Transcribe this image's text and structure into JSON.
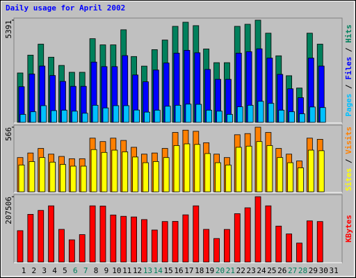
{
  "chart_data": [
    {
      "type": "bar",
      "title": "Daily usage for April 2002",
      "legend_separator": " / ",
      "ylim": [
        0,
        5391
      ],
      "yticks": [
        5391
      ],
      "series": [
        {
          "name": "Hits",
          "color": "#00805c",
          "values": [
            2605,
            3546,
            4125,
            3437,
            3003,
            2641,
            2641,
            4414,
            4088,
            4088,
            4884,
            3473,
            2967,
            3835,
            4342,
            5065,
            5282,
            5102,
            3871,
            3148,
            3148,
            5065,
            5174,
            5391,
            4704,
            3510,
            2460,
            1809,
            4704,
            4125,
            null
          ]
        },
        {
          "name": "Files",
          "color": "#0000ff",
          "values": [
            1880,
            2550,
            2970,
            2470,
            2160,
            1900,
            1900,
            3180,
            2940,
            2940,
            3520,
            2500,
            2140,
            2760,
            3130,
            3650,
            3800,
            3670,
            2790,
            2270,
            2270,
            3650,
            3730,
            3880,
            3390,
            2530,
            1770,
            1300,
            3390,
            2970,
            null
          ]
        },
        {
          "name": "Pages",
          "color": "#00c0ff",
          "values": [
            420,
            560,
            880,
            620,
            640,
            590,
            480,
            900,
            760,
            880,
            880,
            650,
            540,
            640,
            850,
            900,
            960,
            950,
            640,
            590,
            420,
            820,
            900,
            1110,
            1000,
            640,
            560,
            450,
            810,
            780,
            null
          ]
        }
      ]
    },
    {
      "type": "bar",
      "legend_separator": " / ",
      "ylim": [
        0,
        566
      ],
      "yticks": [
        566
      ],
      "series": [
        {
          "name": "Visits",
          "color": "#ff8000",
          "values": [
            300,
            340,
            380,
            330,
            310,
            290,
            290,
            470,
            440,
            470,
            450,
            390,
            330,
            340,
            380,
            520,
            540,
            530,
            430,
            330,
            300,
            500,
            510,
            566,
            520,
            380,
            330,
            270,
            470,
            460,
            null
          ]
        },
        {
          "name": "Sites",
          "color": "#ffff00",
          "values": [
            235,
            265,
            300,
            260,
            240,
            225,
            225,
            370,
            345,
            365,
            350,
            305,
            255,
            265,
            300,
            405,
            420,
            415,
            335,
            255,
            235,
            390,
            400,
            440,
            405,
            300,
            255,
            210,
            365,
            360,
            null
          ]
        }
      ]
    },
    {
      "type": "bar",
      "ylim": [
        0,
        207506
      ],
      "yticks": [
        207506
      ],
      "categories": [
        "1",
        "2",
        "3",
        "4",
        "5",
        "6",
        "7",
        "8",
        "9",
        "10",
        "11",
        "12",
        "13",
        "14",
        "15",
        "16",
        "17",
        "18",
        "19",
        "20",
        "21",
        "22",
        "23",
        "24",
        "25",
        "26",
        "27",
        "28",
        "29",
        "30",
        "31"
      ],
      "category_colors": [
        "#000000",
        "#000000",
        "#000000",
        "#000000",
        "#000000",
        "#00805c",
        "#00805c",
        "#000000",
        "#000000",
        "#000000",
        "#000000",
        "#000000",
        "#00805c",
        "#00805c",
        "#000000",
        "#000000",
        "#000000",
        "#000000",
        "#000000",
        "#00805c",
        "#00805c",
        "#000000",
        "#000000",
        "#000000",
        "#000000",
        "#000000",
        "#00805c",
        "#00805c",
        "#000000",
        "#000000",
        "#000000"
      ],
      "series": [
        {
          "name": "KBytes",
          "color": "#ff0000",
          "values": [
            99603,
            151479,
            163930,
            178455,
            103753,
            70552,
            87153,
            178455,
            177800,
            149404,
            145254,
            143179,
            134879,
            101678,
            128654,
            129100,
            149900,
            178455,
            103753,
            74702,
            103500,
            153554,
            172230,
            207506,
            178455,
            114128,
            89228,
            60177,
            130729,
            128654,
            null
          ]
        }
      ]
    }
  ]
}
